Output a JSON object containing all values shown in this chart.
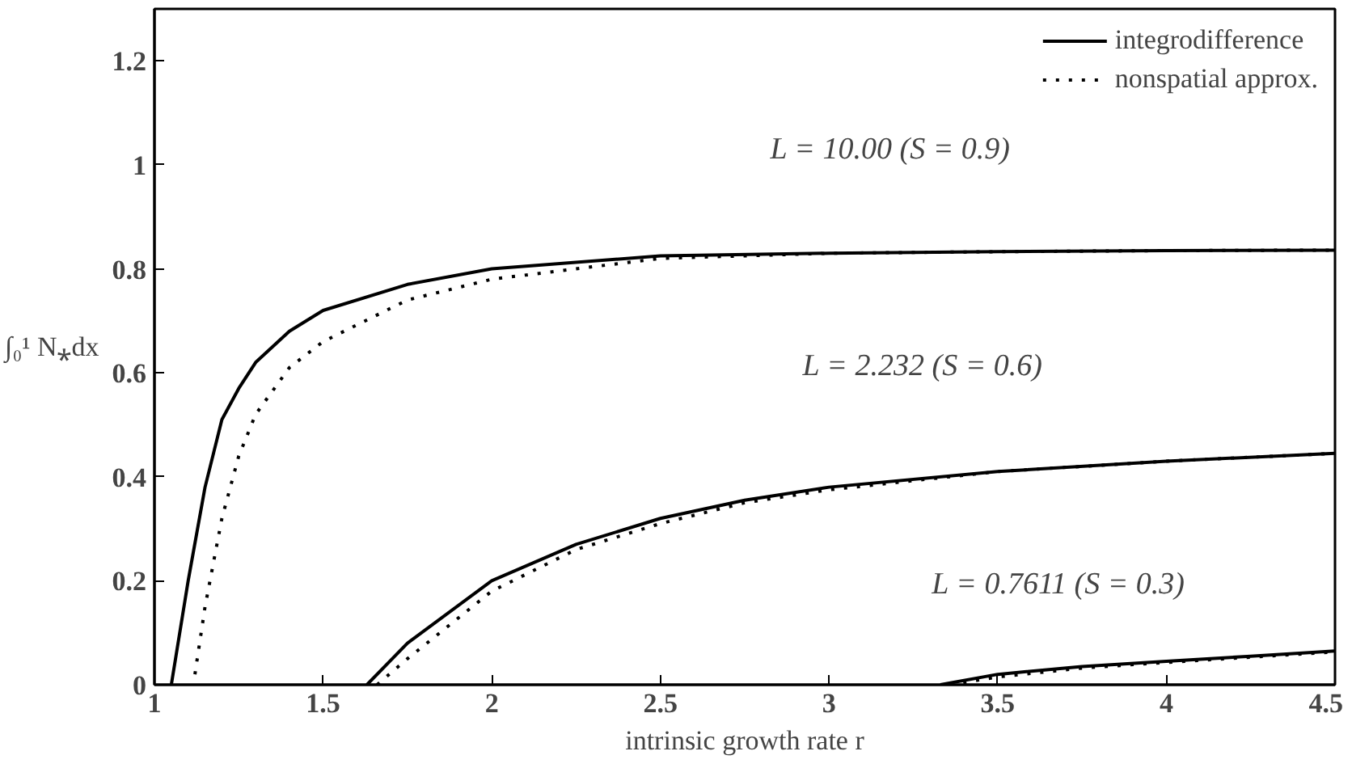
{
  "chart_data": {
    "type": "line",
    "xlabel": "intrinsic growth rate r",
    "ylabel": "∫₀¹ N⁎dx",
    "xlim": [
      1,
      4.5
    ],
    "ylim": [
      0,
      1.3
    ],
    "xticks": [
      1,
      1.5,
      2,
      2.5,
      3,
      3.5,
      4,
      4.5
    ],
    "yticks": [
      0,
      0.2,
      0.4,
      0.6,
      0.8,
      1,
      1.2
    ],
    "grid": false,
    "legend": "top right",
    "marker": "none",
    "series": [
      {
        "name": "integrodifference",
        "color": "#000000",
        "line_style": "solid",
        "x": [
          1.05,
          1.1,
          1.15,
          1.2,
          1.25,
          1.3,
          1.4,
          1.5,
          1.75,
          2,
          2.5,
          3,
          3.5,
          4,
          4.5
        ],
        "values": [
          0,
          0.2,
          0.38,
          0.51,
          0.57,
          0.62,
          0.68,
          0.72,
          0.77,
          0.8,
          0.825,
          0.83,
          0.833,
          0.835,
          0.836
        ]
      },
      {
        "name": "nonspatial approx.",
        "color": "#000000",
        "line_style": "dotted",
        "x": [
          1.12,
          1.15,
          1.2,
          1.25,
          1.3,
          1.4,
          1.5,
          1.75,
          2,
          2.5,
          3,
          3.5,
          4,
          4.5
        ],
        "values": [
          0.02,
          0.15,
          0.32,
          0.44,
          0.52,
          0.61,
          0.66,
          0.74,
          0.78,
          0.82,
          0.83,
          0.833,
          0.835,
          0.836
        ]
      },
      {
        "color": "#000000",
        "line_style": "solid",
        "x": [
          1.63,
          1.75,
          2,
          2.25,
          2.5,
          2.75,
          3,
          3.5,
          4,
          4.5
        ],
        "values": [
          0,
          0.08,
          0.2,
          0.27,
          0.32,
          0.355,
          0.38,
          0.41,
          0.43,
          0.445
        ]
      },
      {
        "color": "#000000",
        "line_style": "dotted",
        "x": [
          1.66,
          1.75,
          2,
          2.25,
          2.5,
          2.75,
          3,
          3.5,
          4,
          4.5
        ],
        "values": [
          0,
          0.05,
          0.18,
          0.26,
          0.31,
          0.35,
          0.375,
          0.41,
          0.43,
          0.445
        ]
      },
      {
        "color": "#000000",
        "line_style": "solid",
        "x": [
          3.33,
          3.5,
          3.75,
          4,
          4.25,
          4.5
        ],
        "values": [
          0,
          0.02,
          0.035,
          0.045,
          0.055,
          0.065
        ]
      },
      {
        "color": "#000000",
        "line_style": "dotted",
        "x": [
          3.36,
          3.5,
          3.75,
          4,
          4.25,
          4.5
        ],
        "values": [
          0,
          0.015,
          0.032,
          0.043,
          0.053,
          0.063
        ]
      }
    ],
    "annotations": [
      "L = 10.00 (S = 0.9)",
      "L = 2.232 (S = 0.6)",
      "L = 0.7611 (S = 0.3)"
    ]
  }
}
